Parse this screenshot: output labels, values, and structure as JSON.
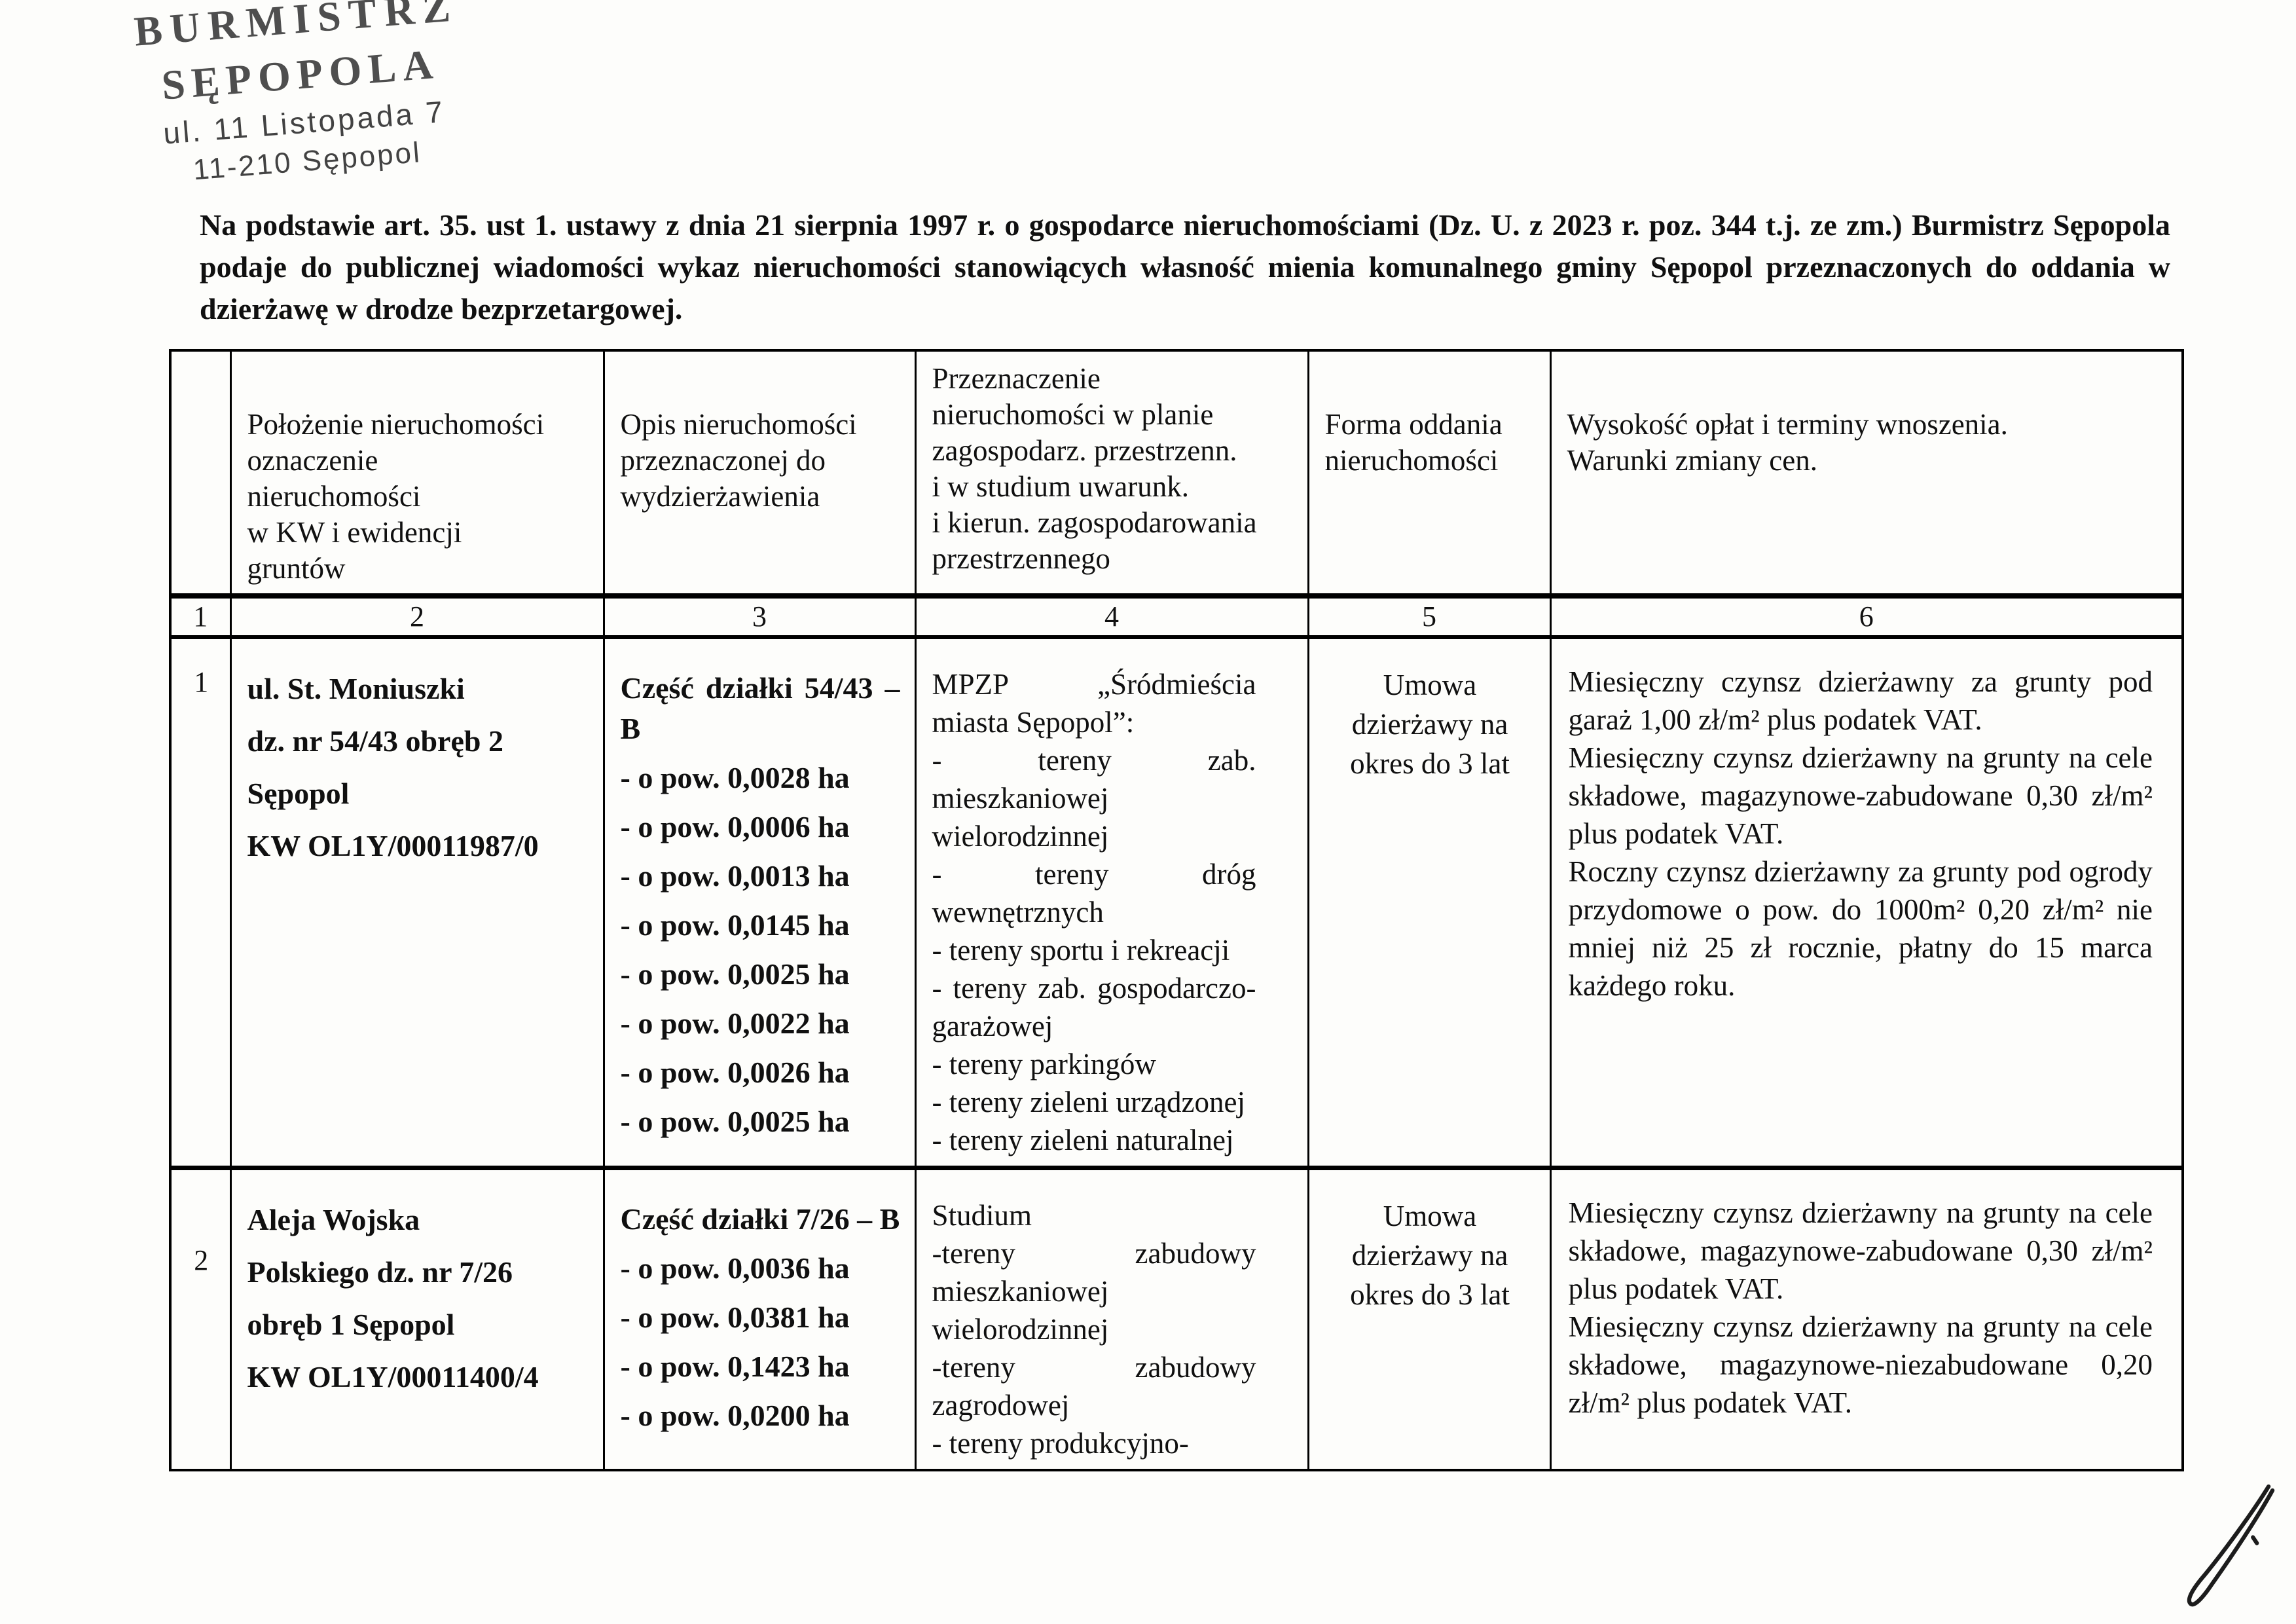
{
  "stamp": {
    "line1": "BURMISTRZ",
    "line2": "SĘPOPOLA",
    "line3": "ul. 11 Listopada 7",
    "line4": "11-210 Sępopol"
  },
  "intro": "Na podstawie art. 35. ust 1. ustawy z dnia 21 sierpnia 1997 r. o gospodarce nieruchomościami (Dz. U. z 2023 r. poz. 344 t.j. ze zm.) Burmistrz Sępopola podaje do publicznej wiadomości wykaz nieruchomości stanowiących własność mienia komunalnego gminy Sępopol przeznaczonych do oddania w dzierżawę w drodze bezprzetargowej.",
  "table": {
    "headers": {
      "col1": "",
      "col2": "Położenie nieruchomości\noznaczenie\nnieruchomości\nw KW i ewidencji\ngruntów",
      "col3": "Opis nieruchomości\nprzeznaczonej do\nwydzierżawienia",
      "col4": "Przeznaczenie\nnieruchomości w planie\nzagospodarz. przestrzenn.\ni w studium uwarunk.\ni kierun. zagospodarowania\nprzestrzennego",
      "col5": "Forma oddania\nnieruchomości",
      "col6": "Wysokość opłat i terminy wnoszenia.\nWarunki zmiany cen."
    },
    "column_numbers": [
      "1",
      "2",
      "3",
      "4",
      "5",
      "6"
    ],
    "rows": [
      {
        "no": "1",
        "location": "ul. St. Moniuszki\ndz. nr 54/43 obręb 2\nSępopol\nKW OL1Y/00011987/0",
        "description": [
          "Część działki 54/43 – B",
          "- o pow. 0,0028 ha",
          "- o pow. 0,0006 ha",
          "- o pow. 0,0013 ha",
          "- o pow. 0,0145 ha",
          "- o pow. 0,0025 ha",
          "- o pow. 0,0022 ha",
          "- o pow. 0,0026 ha",
          "- o pow. 0,0025 ha"
        ],
        "purpose": [
          "MPZP „Śródmieścia miasta Sępopol”:",
          "- tereny zab. mieszkaniowej wielorodzinnej",
          "- tereny dróg wewnętrznych",
          "- tereny sportu i rekreacji",
          "- tereny zab. gospodarczo-garażowej",
          "- tereny parkingów",
          "- tereny zieleni urządzonej",
          "- tereny zieleni naturalnej"
        ],
        "form": "Umowa\ndzierżawy na\nokres do 3 lat",
        "fees": [
          "Miesięczny czynsz dzierżawny za grunty pod garaż 1,00 zł/m² plus podatek VAT.",
          "Miesięczny czynsz dzierżawny na grunty na cele składowe, magazynowe-zabudowane 0,30 zł/m² plus podatek VAT.",
          "Roczny czynsz dzierżawny za grunty pod ogrody przydomowe o pow. do 1000m² 0,20 zł/m² nie mniej niż 25 zł rocznie, płatny do 15 marca każdego roku."
        ]
      },
      {
        "no": "2",
        "location": "Aleja Wojska\nPolskiego dz. nr 7/26\nobręb 1 Sępopol\nKW OL1Y/00011400/4",
        "description": [
          "Część działki 7/26 – B",
          "- o pow. 0,0036 ha",
          "- o pow. 0,0381 ha",
          "- o pow. 0,1423 ha",
          "- o pow. 0,0200 ha"
        ],
        "purpose": [
          "Studium",
          "-tereny zabudowy mieszkaniowej wielorodzinnej",
          "-tereny zabudowy zagrodowej",
          "- tereny produkcyjno-"
        ],
        "form": "Umowa\ndzierżawy na\nokres do 3 lat",
        "fees": [
          "Miesięczny czynsz dzierżawny na grunty na cele składowe, magazynowe-zabudowane 0,30 zł/m² plus podatek VAT.",
          "Miesięczny czynsz dzierżawny na grunty na cele składowe, magazynowe-niezabudowane 0,20 zł/m² plus podatek VAT."
        ]
      }
    ]
  },
  "signature": {
    "type": "handwritten-paraph"
  }
}
